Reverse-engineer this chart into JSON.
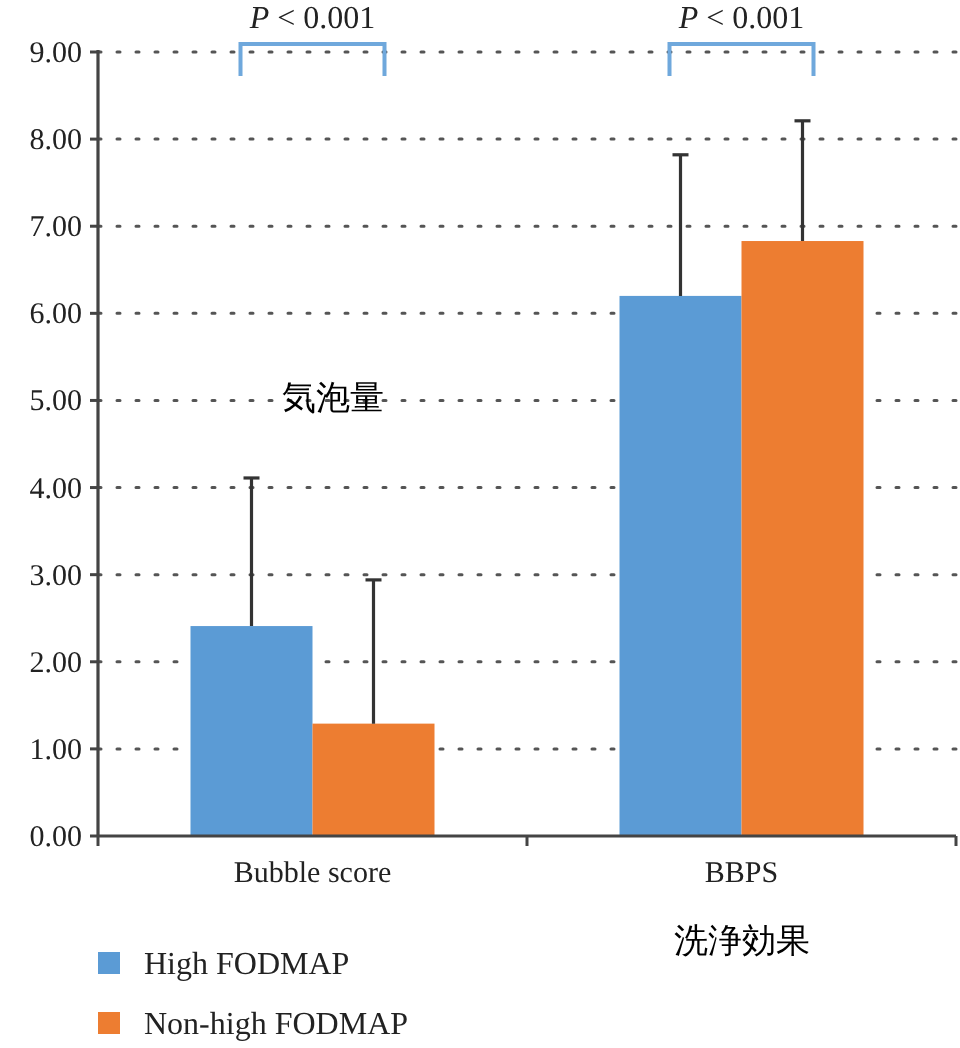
{
  "chart_data": {
    "type": "bar",
    "categories": [
      "Bubble score",
      "BBPS"
    ],
    "series": [
      {
        "name": "High FODMAP",
        "color": "#5b9bd5",
        "values": [
          2.41,
          6.2
        ],
        "errors": [
          [
            2.41,
            4.11
          ],
          [
            6.2,
            7.82
          ]
        ]
      },
      {
        "name": "Non-high FODMAP",
        "color": "#ed7d31",
        "values": [
          1.29,
          6.83
        ],
        "errors": [
          [
            1.29,
            2.94
          ],
          [
            6.83,
            8.21
          ]
        ]
      }
    ],
    "ylim": [
      0,
      9
    ],
    "yticks": [
      {
        "value": 0,
        "label": "0.00"
      },
      {
        "value": 1,
        "label": "1.00"
      },
      {
        "value": 2,
        "label": "2.00"
      },
      {
        "value": 3,
        "label": "3.00"
      },
      {
        "value": 4,
        "label": "4.00"
      },
      {
        "value": 5,
        "label": "5.00"
      },
      {
        "value": 6,
        "label": "6.00"
      },
      {
        "value": 7,
        "label": "7.00"
      },
      {
        "value": 8,
        "label": "8.00"
      },
      {
        "value": 9,
        "label": "9.00"
      }
    ],
    "grid": "y",
    "legend": "bottom left",
    "annotations": [
      "*P* < 0.001",
      "*P* < 0.001",
      "気泡量",
      "洗浄効果"
    ]
  }
}
